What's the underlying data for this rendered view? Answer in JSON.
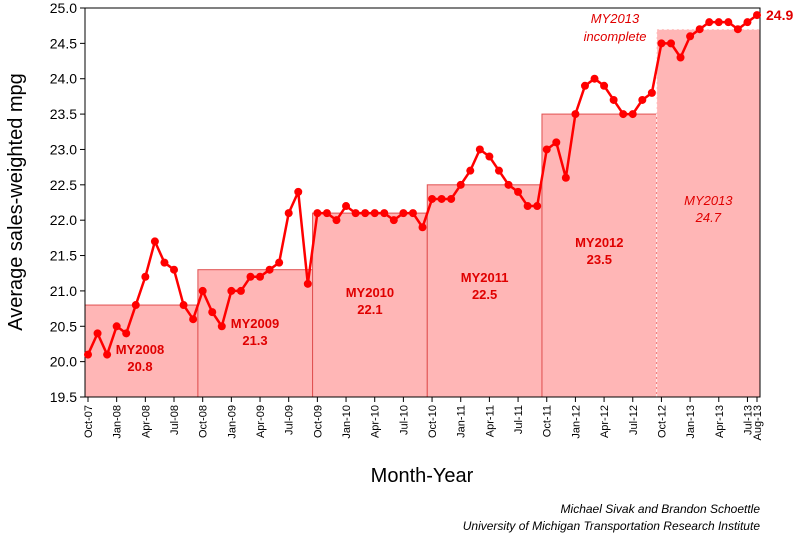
{
  "chart_data": {
    "type": "line",
    "xlabel": "Month-Year",
    "ylabel": "Average sales-weighted mpg",
    "ylim": [
      19.5,
      25.0
    ],
    "yticks": [
      "19.5",
      "20.0",
      "20.5",
      "21.0",
      "21.5",
      "22.0",
      "22.5",
      "23.0",
      "23.5",
      "24.0",
      "24.5",
      "25.0"
    ],
    "xtick_labels": [
      "Oct-07",
      "Jan-08",
      "Apr-08",
      "Jul-08",
      "Oct-08",
      "Jan-09",
      "Apr-09",
      "Jul-09",
      "Oct-09",
      "Jan-10",
      "Apr-10",
      "Jul-10",
      "Oct-10",
      "Jan-11",
      "Apr-11",
      "Jul-11",
      "Oct-11",
      "Jan-12",
      "Apr-12",
      "Jul-12",
      "Oct-12",
      "Jan-13",
      "Apr-13",
      "Jul-13",
      "Aug-13"
    ],
    "start_month": "Oct-07",
    "values": [
      20.1,
      20.4,
      20.1,
      20.5,
      20.4,
      20.8,
      21.2,
      21.7,
      21.4,
      21.3,
      20.8,
      20.6,
      21.0,
      20.7,
      20.5,
      21.0,
      21.0,
      21.2,
      21.2,
      21.3,
      21.4,
      22.1,
      22.4,
      21.1,
      22.1,
      22.1,
      22.0,
      22.2,
      22.1,
      22.1,
      22.1,
      22.1,
      22.0,
      22.1,
      22.1,
      21.9,
      22.3,
      22.3,
      22.3,
      22.5,
      22.7,
      23.0,
      22.9,
      22.7,
      22.5,
      22.4,
      22.2,
      22.2,
      23.0,
      23.1,
      22.6,
      23.5,
      23.9,
      24.0,
      23.9,
      23.7,
      23.5,
      23.5,
      23.7,
      23.8,
      24.5,
      24.5,
      24.3,
      24.6,
      24.7,
      24.8,
      24.8,
      24.8,
      24.7,
      24.8,
      24.9
    ],
    "last_value_label": "24.9",
    "model_years": [
      {
        "name": "MY2008",
        "value": 20.8,
        "value_label": "20.8",
        "complete": true
      },
      {
        "name": "MY2009",
        "value": 21.3,
        "value_label": "21.3",
        "complete": true
      },
      {
        "name": "MY2010",
        "value": 22.1,
        "value_label": "22.1",
        "complete": true
      },
      {
        "name": "MY2011",
        "value": 22.5,
        "value_label": "22.5",
        "complete": true
      },
      {
        "name": "MY2012",
        "value": 23.5,
        "value_label": "23.5",
        "complete": true
      },
      {
        "name": "MY2013",
        "value": 24.7,
        "value_label": "24.7",
        "complete": false
      }
    ],
    "incomplete_note": [
      "MY2013",
      "incomplete"
    ],
    "grid": false,
    "colors": {
      "line": "#ff0000",
      "bar_fill": "#ffb6b6",
      "bar_stroke": "#e05050",
      "label": "#e00000"
    }
  },
  "credits": [
    "Michael Sivak and Brandon Schoettle",
    "University of Michigan Transportation Research Institute"
  ]
}
